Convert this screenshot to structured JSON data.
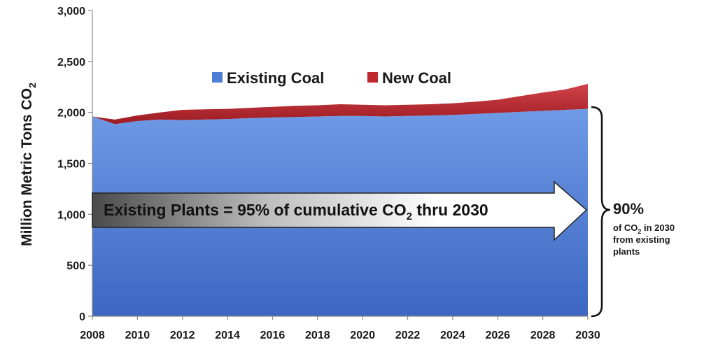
{
  "chart_data": {
    "type": "area",
    "stacked": true,
    "title": "",
    "ylabel": "Million Metric Tons CO",
    "ylabel_sub": "2",
    "xlabel": "",
    "x": [
      2008,
      2009,
      2010,
      2011,
      2012,
      2013,
      2014,
      2015,
      2016,
      2017,
      2018,
      2019,
      2020,
      2021,
      2022,
      2023,
      2024,
      2025,
      2026,
      2027,
      2028,
      2029,
      2030
    ],
    "x_tick_labels": [
      "2008",
      "2010",
      "2012",
      "2014",
      "2016",
      "2018",
      "2020",
      "2022",
      "2024",
      "2026",
      "2028",
      "2030"
    ],
    "ylim": [
      0,
      3000
    ],
    "y_tick_labels": [
      "0",
      "500",
      "1,000",
      "1,500",
      "2,000",
      "2,500",
      "3,000"
    ],
    "series": [
      {
        "name": "Existing Coal",
        "color": "#4f7fd4",
        "values": [
          1960,
          1885,
          1915,
          1930,
          1925,
          1930,
          1935,
          1945,
          1950,
          1955,
          1960,
          1965,
          1965,
          1960,
          1965,
          1970,
          1975,
          1985,
          1995,
          2005,
          2015,
          2025,
          2035
        ]
      },
      {
        "name": "New Coal",
        "color": "#c0282d",
        "values": [
          0,
          45,
          55,
          70,
          100,
          100,
          100,
          100,
          105,
          110,
          110,
          115,
          110,
          110,
          110,
          110,
          115,
          120,
          130,
          155,
          180,
          200,
          245
        ]
      }
    ],
    "legend_position": "top-center",
    "grid": false
  },
  "annotations": {
    "arrow_text_main": "Existing Plants = 95% of cumulative CO",
    "arrow_text_sub": "2",
    "arrow_text_tail": " thru 2030",
    "callout_pct": "90%",
    "callout_line1_main": "of CO",
    "callout_line1_sub": "2",
    "callout_line1_tail": " in 2030",
    "callout_line2": "from existing",
    "callout_line3": "plants"
  },
  "colors": {
    "existing_gradient_top": "#6b96e4",
    "existing_gradient_bottom": "#3a66c0",
    "new_coal": "#c0282d",
    "axis": "#888888"
  }
}
